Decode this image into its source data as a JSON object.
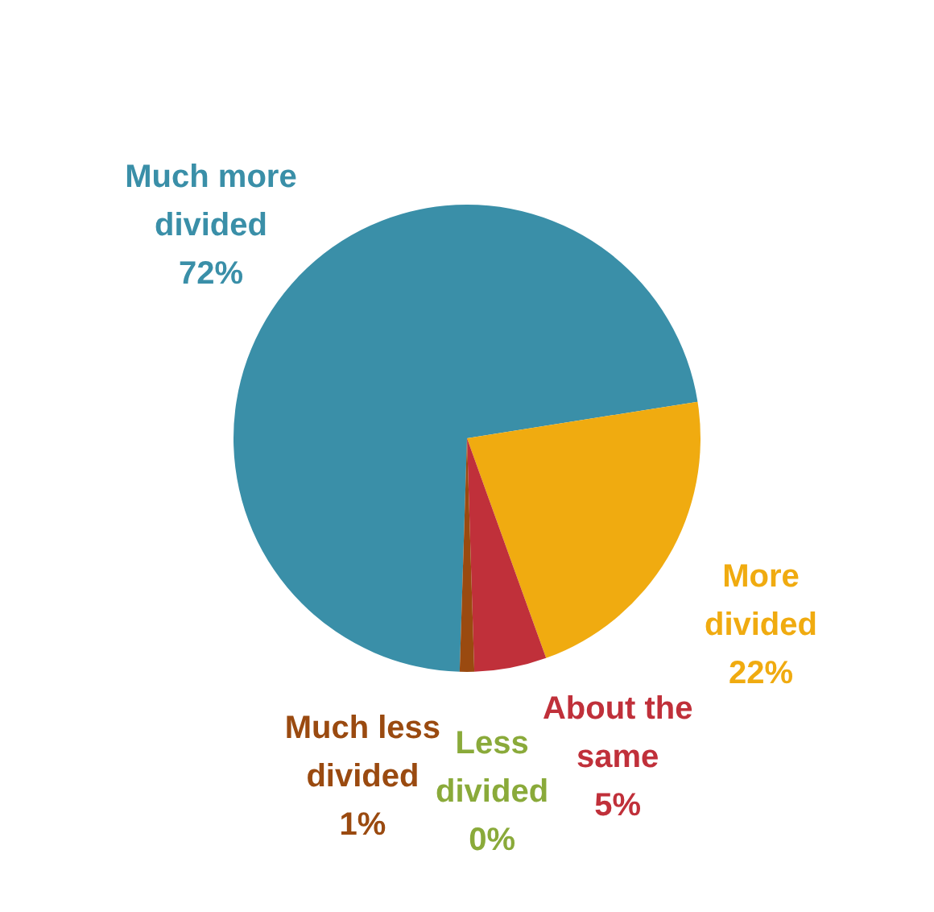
{
  "chart_data": {
    "type": "pie",
    "categories": [
      "Much more divided",
      "More divided",
      "About the same",
      "Less divided",
      "Much less divided"
    ],
    "values": [
      72,
      22,
      5,
      0,
      1
    ],
    "value_labels": [
      "72%",
      "22%",
      "5%",
      "0%",
      "1%"
    ],
    "colors": [
      "#3a8fa8",
      "#f0ab10",
      "#c0303a",
      "#8aaa3a",
      "#9a4a10"
    ]
  }
}
